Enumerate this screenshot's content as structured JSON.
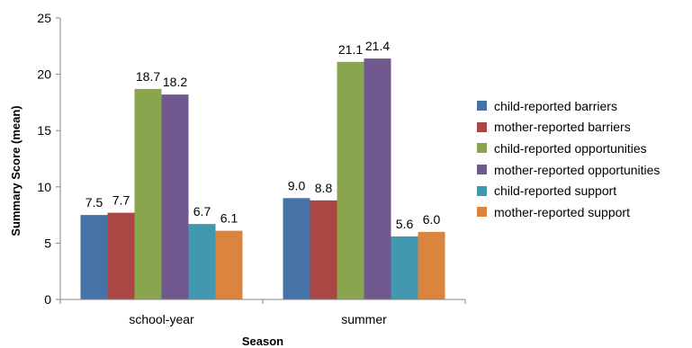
{
  "chart_data": {
    "type": "bar",
    "categories": [
      "school-year",
      "summer"
    ],
    "series": [
      {
        "name": "child-reported barriers",
        "color": "#4572A7",
        "values": [
          7.5,
          9.0
        ]
      },
      {
        "name": "mother-reported barriers",
        "color": "#AA4643",
        "values": [
          7.7,
          8.8
        ]
      },
      {
        "name": "child-reported opportunities",
        "color": "#89A54E",
        "values": [
          18.7,
          21.1
        ]
      },
      {
        "name": "mother-reported opportunities",
        "color": "#71588F",
        "values": [
          18.2,
          21.4
        ]
      },
      {
        "name": "child-reported support",
        "color": "#4198AF",
        "values": [
          6.7,
          5.6
        ]
      },
      {
        "name": "mother-reported support",
        "color": "#DB843D",
        "values": [
          6.1,
          6.0
        ]
      }
    ],
    "data_labels": [
      [
        "7.5",
        "9.0"
      ],
      [
        "7.7",
        "8.8"
      ],
      [
        "18.7",
        "21.1"
      ],
      [
        "18.2",
        "21.4"
      ],
      [
        "6.7",
        "5.6"
      ],
      [
        "6.1",
        "6.0"
      ]
    ],
    "xlabel": "Season",
    "ylabel": "Summary Score (mean)",
    "ylim": [
      0,
      25
    ],
    "yticks": [
      0,
      5,
      10,
      15,
      20,
      25
    ],
    "grid": false,
    "legend_position": "right"
  }
}
